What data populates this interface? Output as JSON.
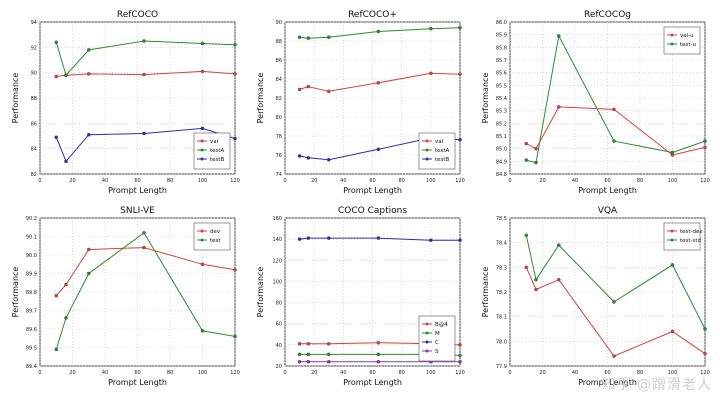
{
  "watermark": "知乎 @蹭滑老人",
  "colors": {
    "red": "#d9413a",
    "green": "#2a8f2a",
    "blue": "#2d2db0",
    "axis": "#222222",
    "grid": "#bfbfbf"
  },
  "chart_data": [
    {
      "type": "line",
      "title": "RefCOCO",
      "xlabel": "Prompt Length",
      "ylabel": "Performance",
      "xlim": [
        0,
        120
      ],
      "ylim": [
        82,
        94
      ],
      "xticks": [
        0,
        20,
        40,
        60,
        80,
        100,
        120
      ],
      "yticks": [
        82,
        84,
        86,
        88,
        90,
        92,
        94
      ],
      "legend_position": "bottom-right",
      "series": [
        {
          "name": "val",
          "color": "red",
          "x": [
            10,
            16,
            30,
            64,
            100,
            120
          ],
          "y": [
            89.7,
            89.8,
            89.9,
            89.85,
            90.1,
            89.9
          ]
        },
        {
          "name": "testA",
          "color": "green",
          "x": [
            10,
            16,
            30,
            64,
            100,
            120
          ],
          "y": [
            92.4,
            89.8,
            91.8,
            92.5,
            92.3,
            92.2
          ]
        },
        {
          "name": "testB",
          "color": "blue",
          "x": [
            10,
            16,
            30,
            64,
            100,
            120
          ],
          "y": [
            84.9,
            83.0,
            85.1,
            85.2,
            85.6,
            84.8
          ]
        }
      ]
    },
    {
      "type": "line",
      "title": "RefCOCO+",
      "xlabel": "Prompt Length",
      "ylabel": "Performance",
      "xlim": [
        0,
        120
      ],
      "ylim": [
        74,
        90
      ],
      "xticks": [
        0,
        20,
        40,
        60,
        80,
        100,
        120
      ],
      "yticks": [
        74,
        76,
        78,
        80,
        82,
        84,
        86,
        88,
        90
      ],
      "legend_position": "bottom-right",
      "series": [
        {
          "name": "val",
          "color": "red",
          "x": [
            10,
            16,
            30,
            64,
            100,
            120
          ],
          "y": [
            82.9,
            83.2,
            82.7,
            83.6,
            84.6,
            84.5
          ]
        },
        {
          "name": "testA",
          "color": "green",
          "x": [
            10,
            16,
            30,
            64,
            100,
            120
          ],
          "y": [
            88.4,
            88.3,
            88.4,
            89.0,
            89.3,
            89.4
          ]
        },
        {
          "name": "testB",
          "color": "blue",
          "x": [
            10,
            16,
            30,
            64,
            100,
            120
          ],
          "y": [
            75.9,
            75.7,
            75.5,
            76.6,
            77.8,
            77.6
          ]
        }
      ]
    },
    {
      "type": "line",
      "title": "RefCOCOg",
      "xlabel": "Prompt Length",
      "ylabel": "Performance",
      "xlim": [
        0,
        120
      ],
      "ylim": [
        84.8,
        86.0
      ],
      "xticks": [
        0,
        20,
        40,
        60,
        80,
        100,
        120
      ],
      "yticks": [
        84.8,
        84.9,
        85.0,
        85.1,
        85.2,
        85.3,
        85.4,
        85.5,
        85.6,
        85.7,
        85.8,
        85.9,
        86.0
      ],
      "legend_position": "top-right",
      "series": [
        {
          "name": "val-u",
          "color": "red",
          "x": [
            10,
            16,
            30,
            64,
            100,
            120
          ],
          "y": [
            85.04,
            85.0,
            85.33,
            85.31,
            84.95,
            85.01
          ]
        },
        {
          "name": "test-u",
          "color": "green",
          "x": [
            10,
            16,
            30,
            64,
            100,
            120
          ],
          "y": [
            84.91,
            84.89,
            85.89,
            85.06,
            84.97,
            85.06
          ]
        }
      ]
    },
    {
      "type": "line",
      "title": "SNLI-VE",
      "xlabel": "Prompt Length",
      "ylabel": "Performance",
      "xlim": [
        0,
        120
      ],
      "ylim": [
        89.4,
        90.2
      ],
      "xticks": [
        0,
        20,
        40,
        60,
        80,
        100,
        120
      ],
      "yticks": [
        89.4,
        89.5,
        89.6,
        89.7,
        89.8,
        89.9,
        90.0,
        90.1,
        90.2
      ],
      "legend_position": "top-right",
      "series": [
        {
          "name": "dev",
          "color": "red",
          "x": [
            10,
            16,
            30,
            64,
            100,
            120
          ],
          "y": [
            89.78,
            89.84,
            90.03,
            90.04,
            89.95,
            89.92
          ]
        },
        {
          "name": "test",
          "color": "green",
          "x": [
            10,
            16,
            30,
            64,
            100,
            120
          ],
          "y": [
            89.49,
            89.66,
            89.9,
            90.12,
            89.59,
            89.56
          ]
        }
      ]
    },
    {
      "type": "line",
      "title": "COCO Captions",
      "xlabel": "Prompt Length",
      "ylabel": "Performance",
      "xlim": [
        0,
        120
      ],
      "ylim": [
        20,
        160
      ],
      "xticks": [
        0,
        20,
        40,
        60,
        80,
        100,
        120
      ],
      "yticks": [
        20,
        40,
        60,
        80,
        100,
        120,
        140,
        160
      ],
      "legend_position": "bottom-right",
      "series": [
        {
          "name": "B@4",
          "color": "red",
          "x": [
            10,
            16,
            30,
            64,
            100,
            120
          ],
          "y": [
            41,
            41,
            41,
            42,
            41,
            40
          ]
        },
        {
          "name": "M",
          "color": "green",
          "x": [
            10,
            16,
            30,
            64,
            100,
            120
          ],
          "y": [
            31,
            31,
            31,
            31,
            31,
            30
          ]
        },
        {
          "name": "C",
          "color": "blue",
          "x": [
            10,
            16,
            30,
            64,
            100,
            120
          ],
          "y": [
            140,
            141,
            141,
            141,
            139,
            139
          ]
        },
        {
          "name": "S",
          "color": "purple",
          "x": [
            10,
            16,
            30,
            64,
            100,
            120
          ],
          "y": [
            24,
            24,
            24,
            24,
            24,
            24
          ]
        }
      ]
    },
    {
      "type": "line",
      "title": "VQA",
      "xlabel": "Prompt Length",
      "ylabel": "Performance",
      "xlim": [
        0,
        120
      ],
      "ylim": [
        77.9,
        78.5
      ],
      "xticks": [
        0,
        20,
        40,
        60,
        80,
        100,
        120
      ],
      "yticks": [
        77.9,
        78.0,
        78.1,
        78.2,
        78.3,
        78.4,
        78.5
      ],
      "legend_position": "top-right",
      "series": [
        {
          "name": "test-dev",
          "color": "red",
          "x": [
            10,
            16,
            30,
            64,
            100,
            120
          ],
          "y": [
            78.3,
            78.21,
            78.25,
            77.94,
            78.04,
            77.95
          ]
        },
        {
          "name": "test-std",
          "color": "green",
          "x": [
            10,
            16,
            30,
            64,
            100,
            120
          ],
          "y": [
            78.43,
            78.25,
            78.39,
            78.16,
            78.31,
            78.05
          ]
        }
      ]
    }
  ]
}
